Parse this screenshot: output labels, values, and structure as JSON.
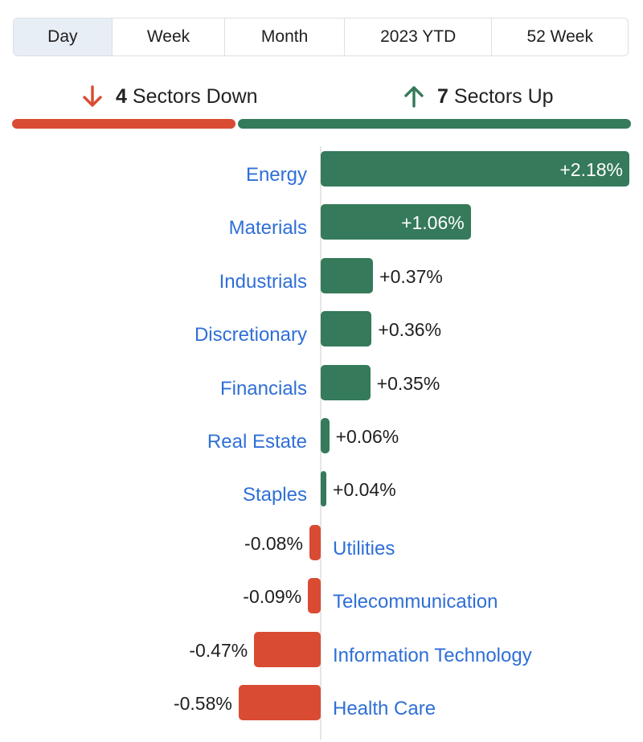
{
  "tabs": [
    {
      "label": "Day",
      "active": true
    },
    {
      "label": "Week",
      "active": false
    },
    {
      "label": "Month",
      "active": false
    },
    {
      "label": "2023 YTD",
      "active": false
    },
    {
      "label": "52 Week",
      "active": false
    }
  ],
  "summary": {
    "down": {
      "count": "4",
      "text": "Sectors Down",
      "icon": "arrow-down-icon"
    },
    "up": {
      "count": "7",
      "text": "Sectors Up",
      "icon": "arrow-up-icon"
    }
  },
  "colors": {
    "up": "#357a5a",
    "down": "#d94b33",
    "link": "#2f6fd6",
    "active_tab": "#e8eef6"
  },
  "chart_data": {
    "type": "bar",
    "orientation": "horizontal",
    "categories": [
      "Energy",
      "Materials",
      "Industrials",
      "Discretionary",
      "Financials",
      "Real Estate",
      "Staples",
      "Utilities",
      "Telecommunication",
      "Information Technology",
      "Health Care"
    ],
    "values": [
      2.18,
      1.06,
      0.37,
      0.36,
      0.35,
      0.06,
      0.04,
      -0.08,
      -0.09,
      -0.47,
      -0.58
    ],
    "value_labels": [
      "+2.18%",
      "+1.06%",
      "+0.37%",
      "+0.36%",
      "+0.35%",
      "+0.06%",
      "+0.04%",
      "-0.08%",
      "-0.09%",
      "-0.47%",
      "-0.58%"
    ]
  }
}
